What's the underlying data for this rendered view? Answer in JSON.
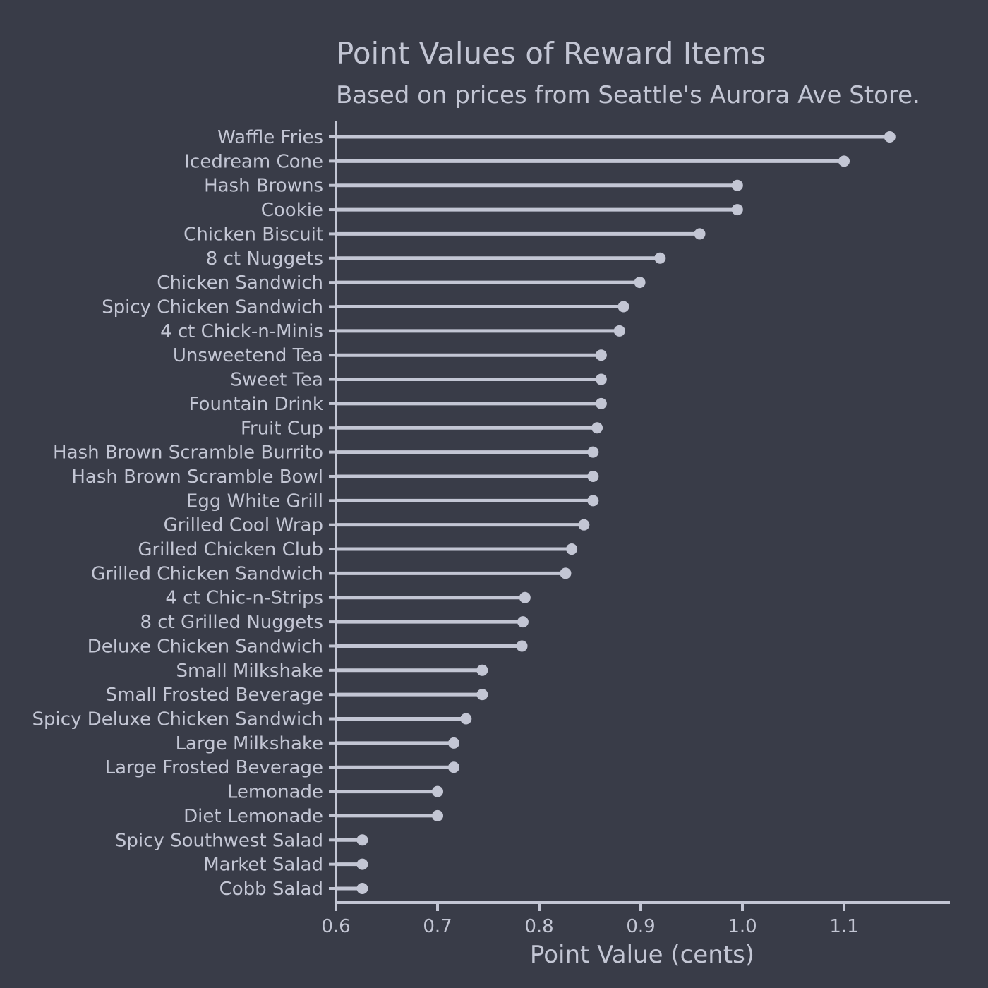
{
  "chart_data": {
    "type": "lollipop",
    "title": "Point Values of Reward Items",
    "subtitle": "Based on prices from Seattle's Aurora Ave Store.",
    "xlabel": "Point Value (cents)",
    "ylabel": "",
    "xlim": [
      0.6,
      1.2
    ],
    "xticks": [
      "0.6",
      "0.7",
      "0.8",
      "0.9",
      "1.0",
      "1.1"
    ],
    "grid": false,
    "colors": {
      "background": "#393c48",
      "foreground": "#c3c6d4"
    },
    "categories": [
      "Waffle Fries",
      "Icedream Cone",
      "Hash Browns",
      "Cookie",
      "Chicken Biscuit",
      "8 ct Nuggets",
      "Chicken Sandwich",
      "Spicy Chicken Sandwich",
      "4 ct Chick-n-Minis",
      "Unsweetend Tea",
      "Sweet Tea",
      "Fountain Drink",
      "Fruit Cup",
      "Hash Brown Scramble Burrito",
      "Hash Brown Scramble Bowl",
      "Egg White Grill",
      "Grilled Cool Wrap",
      "Grilled Chicken Club",
      "Grilled Chicken Sandwich",
      "4 ct Chic-n-Strips",
      "8 ct Grilled Nuggets",
      "Deluxe Chicken Sandwich",
      "Small Milkshake",
      "Small Frosted Beverage",
      "Spicy Deluxe Chicken Sandwich",
      "Large Milkshake",
      "Large Frosted Beverage",
      "Lemonade",
      "Diet Lemonade",
      "Spicy Southwest Salad",
      "Market Salad",
      "Cobb Salad"
    ],
    "values": [
      1.145,
      1.1,
      0.995,
      0.995,
      0.958,
      0.919,
      0.899,
      0.883,
      0.879,
      0.861,
      0.861,
      0.861,
      0.857,
      0.853,
      0.853,
      0.853,
      0.844,
      0.832,
      0.826,
      0.786,
      0.784,
      0.783,
      0.744,
      0.744,
      0.728,
      0.716,
      0.716,
      0.7,
      0.7,
      0.626,
      0.626,
      0.626
    ]
  }
}
